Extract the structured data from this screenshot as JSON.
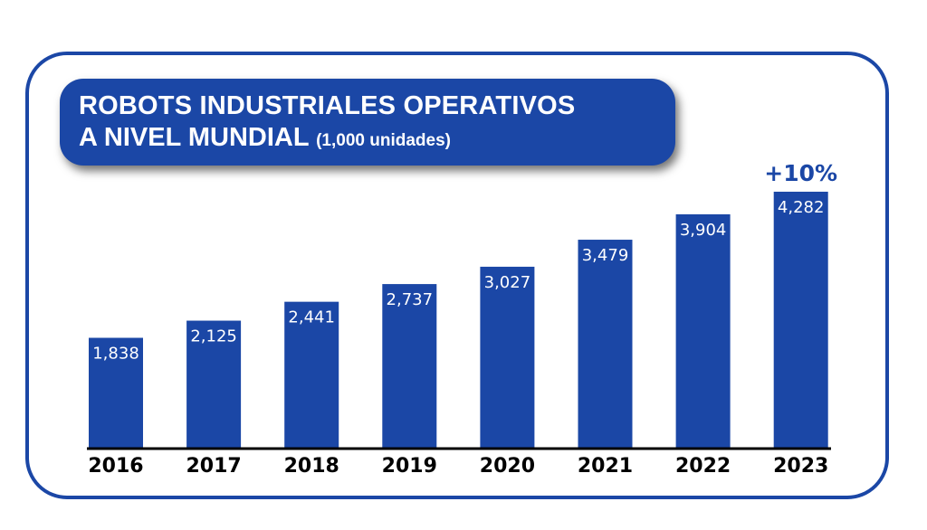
{
  "chart_data": {
    "type": "bar",
    "title": "ROBOTS INDUSTRIALES OPERATIVOS A NIVEL MUNDIAL",
    "title_line1": "ROBOTS INDUSTRIALES OPERATIVOS",
    "title_line2": "A NIVEL MUNDIAL",
    "unit": "(1,000 unidades)",
    "categories": [
      "2016",
      "2017",
      "2018",
      "2019",
      "2020",
      "2021",
      "2022",
      "2023"
    ],
    "values": [
      1838,
      2125,
      2441,
      2737,
      3027,
      3479,
      3904,
      4282
    ],
    "data_labels": [
      "1,838",
      "2,125",
      "2,441",
      "2,737",
      "3,027",
      "3,479",
      "3,904",
      "4,282"
    ],
    "annotation": "+10%",
    "grid": false,
    "legend": "none",
    "colors": {
      "bar": "#1b47a6",
      "label": "#ffffff",
      "axis": "#000000",
      "annotation": "#1b47a6"
    }
  }
}
